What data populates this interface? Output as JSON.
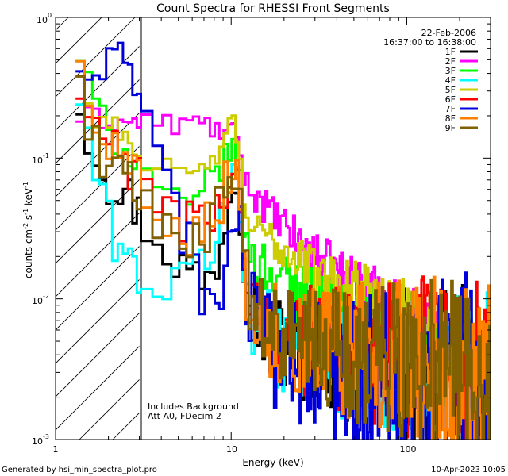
{
  "chart_data": {
    "type": "line",
    "title": "Count Spectra for RHESSI Front Segments",
    "xlabel": "Energy (keV)",
    "ylabel": "counts cm",
    "ylabel_parts": [
      "counts cm",
      "-2",
      " s",
      "-1",
      " keV",
      "-1"
    ],
    "x_scale": "log",
    "y_scale": "log",
    "xlim": [
      1,
      300
    ],
    "ylim": [
      0.001,
      1
    ],
    "x_ticks": [
      {
        "value": 1,
        "label": "1"
      },
      {
        "value": 10,
        "label": "10"
      },
      {
        "value": 100,
        "label": "100"
      }
    ],
    "y_ticks": [
      {
        "value": 0.001,
        "base": "10",
        "exp": "-3"
      },
      {
        "value": 0.01,
        "base": "10",
        "exp": "-2"
      },
      {
        "value": 0.1,
        "base": "10",
        "exp": "-1"
      },
      {
        "value": 1,
        "base": "10",
        "exp": "0"
      }
    ],
    "attenuator_cutoff_keV": 3,
    "legend_header": [
      "22-Feb-2006",
      "16:37:00 to 16:38:00"
    ],
    "annotations": [
      "Includes Background",
      "Att A0, FDecim 2"
    ],
    "series": [
      {
        "name": "1F",
        "color": "#000000",
        "anchors": [
          [
            1.3,
            0.32
          ],
          [
            1.6,
            0.13
          ],
          [
            2,
            0.07
          ],
          [
            2.5,
            0.06
          ],
          [
            3,
            0.04
          ],
          [
            4,
            0.025
          ],
          [
            5,
            0.018
          ],
          [
            6,
            0.015
          ],
          [
            7,
            0.013
          ],
          [
            8,
            0.015
          ],
          [
            9,
            0.03
          ],
          [
            10,
            0.06
          ],
          [
            10.5,
            0.09
          ],
          [
            11,
            0.07
          ],
          [
            12,
            0.015
          ],
          [
            14,
            0.0075
          ],
          [
            17,
            0.0055
          ],
          [
            20,
            0.005
          ],
          [
            25,
            0.0045
          ],
          [
            30,
            0.0042
          ],
          [
            40,
            0.004
          ],
          [
            50,
            0.0038
          ],
          [
            70,
            0.0036
          ],
          [
            100,
            0.0033
          ],
          [
            150,
            0.003
          ],
          [
            200,
            0.0028
          ],
          [
            300,
            0.0022
          ]
        ],
        "amp": 0.3
      },
      {
        "name": "2F",
        "color": "#ff00ff",
        "anchors": [
          [
            1.3,
            0.19
          ],
          [
            1.6,
            0.2
          ],
          [
            2,
            0.18
          ],
          [
            3,
            0.18
          ],
          [
            4,
            0.18
          ],
          [
            5,
            0.17
          ],
          [
            6,
            0.18
          ],
          [
            7,
            0.18
          ],
          [
            8,
            0.16
          ],
          [
            9,
            0.15
          ],
          [
            10,
            0.16
          ],
          [
            11,
            0.13
          ],
          [
            12,
            0.065
          ],
          [
            14,
            0.055
          ],
          [
            17,
            0.04
          ],
          [
            20,
            0.032
          ],
          [
            25,
            0.025
          ],
          [
            30,
            0.02
          ],
          [
            40,
            0.016
          ],
          [
            50,
            0.013
          ],
          [
            70,
            0.0105
          ],
          [
            100,
            0.008
          ],
          [
            150,
            0.0055
          ],
          [
            200,
            0.0045
          ],
          [
            300,
            0.0033
          ]
        ],
        "amp": 0.12
      },
      {
        "name": "3F",
        "color": "#00ff00",
        "anchors": [
          [
            1.3,
            0.65
          ],
          [
            1.6,
            0.3
          ],
          [
            2,
            0.15
          ],
          [
            3,
            0.09
          ],
          [
            4,
            0.065
          ],
          [
            5,
            0.045
          ],
          [
            6,
            0.042
          ],
          [
            7,
            0.06
          ],
          [
            8,
            0.08
          ],
          [
            9,
            0.09
          ],
          [
            10,
            0.12
          ],
          [
            11,
            0.1
          ],
          [
            12,
            0.025
          ],
          [
            14,
            0.018
          ],
          [
            17,
            0.016
          ],
          [
            20,
            0.014
          ],
          [
            25,
            0.011
          ],
          [
            30,
            0.009
          ],
          [
            40,
            0.007
          ],
          [
            50,
            0.0065
          ],
          [
            70,
            0.006
          ],
          [
            100,
            0.0055
          ],
          [
            150,
            0.004
          ],
          [
            200,
            0.0035
          ],
          [
            300,
            0.0024
          ]
        ],
        "amp": 0.18
      },
      {
        "name": "4F",
        "color": "#00ffff",
        "anchors": [
          [
            1.3,
            0.36
          ],
          [
            1.6,
            0.11
          ],
          [
            2,
            0.035
          ],
          [
            2.5,
            0.02
          ],
          [
            3,
            0.015
          ],
          [
            4,
            0.012
          ],
          [
            5,
            0.012
          ],
          [
            6,
            0.015
          ],
          [
            7,
            0.02
          ],
          [
            8,
            0.025
          ],
          [
            9,
            0.04
          ],
          [
            10,
            0.08
          ],
          [
            11,
            0.06
          ],
          [
            12,
            0.012
          ],
          [
            14,
            0.0065
          ],
          [
            17,
            0.0055
          ],
          [
            20,
            0.005
          ],
          [
            25,
            0.0045
          ],
          [
            30,
            0.0042
          ],
          [
            40,
            0.004
          ],
          [
            50,
            0.004
          ],
          [
            70,
            0.0038
          ],
          [
            100,
            0.0035
          ],
          [
            150,
            0.0032
          ],
          [
            200,
            0.003
          ],
          [
            300,
            0.0025
          ]
        ],
        "amp": 0.3
      },
      {
        "name": "5F",
        "color": "#cccc00",
        "anchors": [
          [
            1.3,
            0.5
          ],
          [
            1.6,
            0.2
          ],
          [
            2,
            0.18
          ],
          [
            2.5,
            0.15
          ],
          [
            3,
            0.1
          ],
          [
            4,
            0.09
          ],
          [
            5,
            0.075
          ],
          [
            6,
            0.07
          ],
          [
            7,
            0.085
          ],
          [
            8,
            0.1
          ],
          [
            9,
            0.12
          ],
          [
            10,
            0.18
          ],
          [
            10.5,
            0.2
          ],
          [
            11,
            0.12
          ],
          [
            12,
            0.04
          ],
          [
            14,
            0.03
          ],
          [
            17,
            0.026
          ],
          [
            20,
            0.022
          ],
          [
            25,
            0.019
          ],
          [
            30,
            0.016
          ],
          [
            40,
            0.014
          ],
          [
            50,
            0.012
          ],
          [
            70,
            0.01
          ],
          [
            100,
            0.0085
          ],
          [
            150,
            0.006
          ],
          [
            200,
            0.005
          ],
          [
            300,
            0.0038
          ]
        ],
        "amp": 0.12
      },
      {
        "name": "6F",
        "color": "#ff0000",
        "anchors": [
          [
            1.3,
            0.3
          ],
          [
            1.6,
            0.18
          ],
          [
            2,
            0.12
          ],
          [
            2.5,
            0.1
          ],
          [
            3,
            0.065
          ],
          [
            4,
            0.05
          ],
          [
            5,
            0.04
          ],
          [
            6,
            0.035
          ],
          [
            7,
            0.032
          ],
          [
            8,
            0.04
          ],
          [
            9,
            0.05
          ],
          [
            10,
            0.08
          ],
          [
            11,
            0.07
          ],
          [
            12,
            0.015
          ],
          [
            14,
            0.008
          ],
          [
            17,
            0.0065
          ],
          [
            20,
            0.0058
          ],
          [
            25,
            0.0052
          ],
          [
            30,
            0.0048
          ],
          [
            40,
            0.0045
          ],
          [
            50,
            0.0043
          ],
          [
            70,
            0.0041
          ],
          [
            100,
            0.0039
          ],
          [
            150,
            0.0035
          ],
          [
            200,
            0.0031
          ],
          [
            300,
            0.0026
          ]
        ],
        "amp": 0.3
      },
      {
        "name": "7F",
        "color": "#0000dd",
        "anchors": [
          [
            1.3,
            0.37
          ],
          [
            1.6,
            0.42
          ],
          [
            2,
            0.42
          ],
          [
            2.5,
            0.43
          ],
          [
            3,
            0.3
          ],
          [
            3.5,
            0.2
          ],
          [
            4,
            0.15
          ],
          [
            5,
            0.04
          ],
          [
            6,
            0.02
          ],
          [
            7,
            0.011
          ],
          [
            8,
            0.008
          ],
          [
            9,
            0.012
          ],
          [
            10,
            0.03
          ],
          [
            11,
            0.045
          ],
          [
            12,
            0.012
          ],
          [
            14,
            0.005
          ],
          [
            17,
            0.0042
          ],
          [
            20,
            0.0038
          ],
          [
            25,
            0.0035
          ],
          [
            30,
            0.0033
          ],
          [
            40,
            0.0032
          ],
          [
            50,
            0.0031
          ],
          [
            70,
            0.0031
          ],
          [
            100,
            0.003
          ],
          [
            150,
            0.0028
          ],
          [
            200,
            0.0026
          ],
          [
            300,
            0.0024
          ]
        ],
        "amp": 0.35
      },
      {
        "name": "8F",
        "color": "#ff8000",
        "anchors": [
          [
            1.3,
            0.55
          ],
          [
            1.6,
            0.25
          ],
          [
            2,
            0.13
          ],
          [
            2.5,
            0.1
          ],
          [
            3,
            0.07
          ],
          [
            4,
            0.045
          ],
          [
            5,
            0.035
          ],
          [
            6,
            0.03
          ],
          [
            7,
            0.035
          ],
          [
            8,
            0.04
          ],
          [
            9,
            0.055
          ],
          [
            10,
            0.09
          ],
          [
            11,
            0.08
          ],
          [
            12,
            0.014
          ],
          [
            14,
            0.0075
          ],
          [
            17,
            0.006
          ],
          [
            20,
            0.0055
          ],
          [
            25,
            0.005
          ],
          [
            30,
            0.0047
          ],
          [
            40,
            0.0044
          ],
          [
            50,
            0.0042
          ],
          [
            70,
            0.004
          ],
          [
            100,
            0.0038
          ],
          [
            150,
            0.0034
          ],
          [
            200,
            0.003
          ],
          [
            300,
            0.0024
          ]
        ],
        "amp": 0.3
      },
      {
        "name": "9F",
        "color": "#806000",
        "anchors": [
          [
            1.3,
            0.45
          ],
          [
            1.6,
            0.15
          ],
          [
            2,
            0.09
          ],
          [
            2.5,
            0.07
          ],
          [
            3,
            0.05
          ],
          [
            4,
            0.035
          ],
          [
            5,
            0.03
          ],
          [
            6,
            0.028
          ],
          [
            7,
            0.03
          ],
          [
            8,
            0.038
          ],
          [
            9,
            0.05
          ],
          [
            10,
            0.085
          ],
          [
            11,
            0.075
          ],
          [
            12,
            0.013
          ],
          [
            14,
            0.007
          ],
          [
            17,
            0.0058
          ],
          [
            20,
            0.0053
          ],
          [
            25,
            0.0048
          ],
          [
            30,
            0.0045
          ],
          [
            40,
            0.0043
          ],
          [
            50,
            0.0041
          ],
          [
            70,
            0.0039
          ],
          [
            100,
            0.0036
          ],
          [
            150,
            0.0032
          ],
          [
            200,
            0.0029
          ],
          [
            300,
            0.0024
          ]
        ],
        "amp": 0.3
      }
    ]
  },
  "footer": {
    "left": "Generated by hsi_min_spectra_plot.pro",
    "right": "10-Apr-2023 10:05"
  }
}
